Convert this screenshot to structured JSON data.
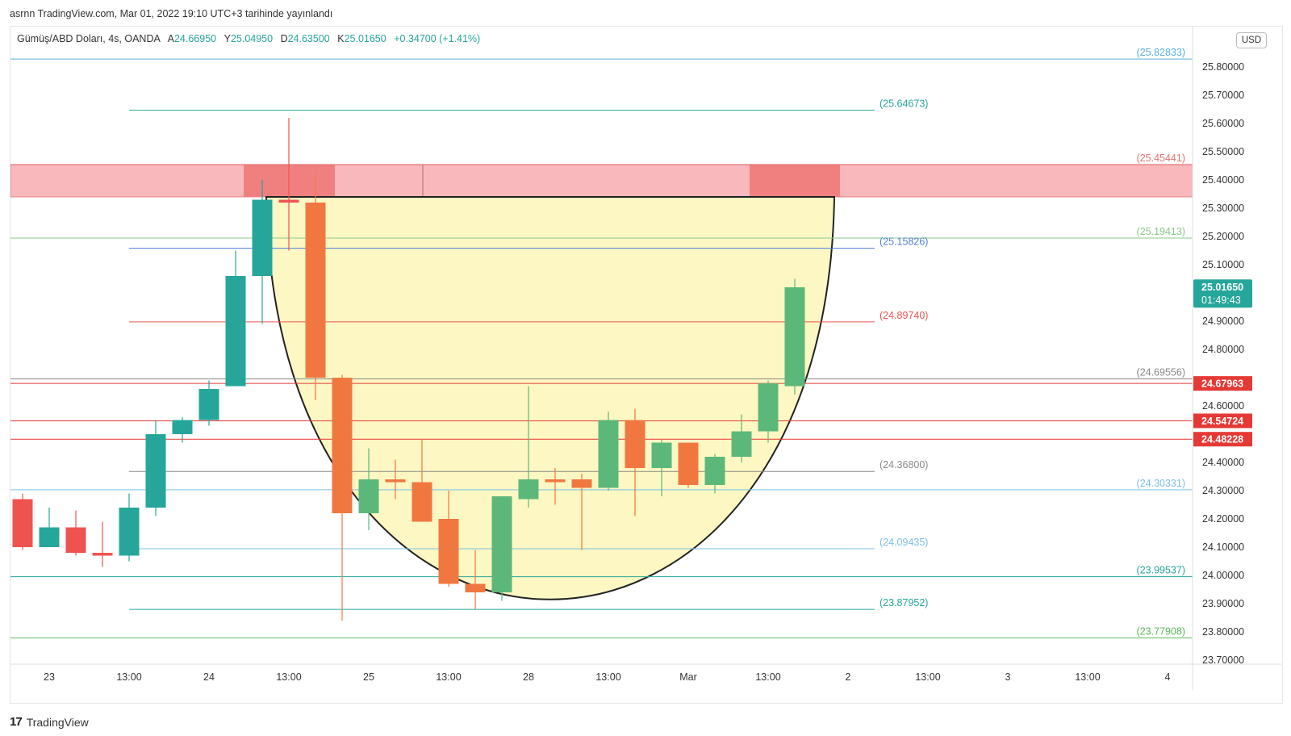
{
  "header": {
    "published": "asrnn TradingView.com, Mar 01, 2022 19:10 UTC+3 tarihinde yayınlandı"
  },
  "legend": {
    "symbol": "Gümüş/ABD Doları, 4s, OANDA",
    "open_label": "A",
    "open": "24.66950",
    "high_label": "Y",
    "high": "25.04950",
    "low_label": "D",
    "low": "24.63500",
    "close_label": "K",
    "close": "25.01650",
    "change": "+0.34700 (+1.41%)"
  },
  "currency": "USD",
  "footer": {
    "brand": "TradingView",
    "logo": "17"
  },
  "colors": {
    "up": "#26a69a",
    "up_light": "#5cb87a",
    "down": "#ef5350",
    "down_orange": "#f07840",
    "zone": "#f8b8bc",
    "zone_dark": "#f08080",
    "cup": "#fdf7c3"
  },
  "chart_data": {
    "type": "candlestick",
    "y_range": [
      23.68,
      25.95
    ],
    "y_ticks": [
      "25.80000",
      "25.70000",
      "25.60000",
      "25.50000",
      "25.40000",
      "25.30000",
      "25.20000",
      "25.10000",
      "24.90000",
      "24.80000",
      "24.60000",
      "24.40000",
      "24.30000",
      "24.20000",
      "24.10000",
      "24.00000",
      "23.90000",
      "23.80000",
      "23.70000"
    ],
    "x_labels": [
      "23",
      "13:00",
      "24",
      "13:00",
      "25",
      "13:00",
      "28",
      "13:00",
      "Mar",
      "13:00",
      "2",
      "13:00",
      "3",
      "13:00",
      "4"
    ],
    "candles": [
      {
        "o": 24.27,
        "h": 24.29,
        "l": 24.09,
        "c": 24.1,
        "color": "down"
      },
      {
        "o": 24.1,
        "h": 24.24,
        "l": 24.1,
        "c": 24.17,
        "color": "up"
      },
      {
        "o": 24.17,
        "h": 24.23,
        "l": 24.07,
        "c": 24.08,
        "color": "down"
      },
      {
        "o": 24.08,
        "h": 24.19,
        "l": 24.03,
        "c": 24.07,
        "color": "down"
      },
      {
        "o": 24.07,
        "h": 24.29,
        "l": 24.05,
        "c": 24.24,
        "color": "up"
      },
      {
        "o": 24.24,
        "h": 24.55,
        "l": 24.21,
        "c": 24.5,
        "color": "up"
      },
      {
        "o": 24.5,
        "h": 24.56,
        "l": 24.47,
        "c": 24.55,
        "color": "up"
      },
      {
        "o": 24.55,
        "h": 24.69,
        "l": 24.53,
        "c": 24.66,
        "color": "up"
      },
      {
        "o": 24.67,
        "h": 25.15,
        "l": 24.67,
        "c": 25.06,
        "color": "up"
      },
      {
        "o": 25.06,
        "h": 25.4,
        "l": 24.89,
        "c": 25.33,
        "color": "up"
      },
      {
        "o": 25.33,
        "h": 25.62,
        "l": 25.15,
        "c": 25.32,
        "color": "down"
      },
      {
        "o": 25.32,
        "h": 25.42,
        "l": 24.62,
        "c": 24.7,
        "color": "down_orange"
      },
      {
        "o": 24.7,
        "h": 24.71,
        "l": 23.84,
        "c": 24.22,
        "color": "down_orange"
      },
      {
        "o": 24.22,
        "h": 24.45,
        "l": 24.16,
        "c": 24.34,
        "color": "up_light"
      },
      {
        "o": 24.34,
        "h": 24.41,
        "l": 24.27,
        "c": 24.33,
        "color": "down_orange"
      },
      {
        "o": 24.33,
        "h": 24.48,
        "l": 24.19,
        "c": 24.19,
        "color": "down_orange"
      },
      {
        "o": 24.2,
        "h": 24.3,
        "l": 23.96,
        "c": 23.97,
        "color": "down_orange"
      },
      {
        "o": 23.97,
        "h": 24.09,
        "l": 23.88,
        "c": 23.94,
        "color": "down_orange"
      },
      {
        "o": 23.94,
        "h": 24.28,
        "l": 23.91,
        "c": 24.28,
        "color": "up_light"
      },
      {
        "o": 24.27,
        "h": 24.67,
        "l": 24.24,
        "c": 24.34,
        "color": "up_light"
      },
      {
        "o": 24.34,
        "h": 24.38,
        "l": 24.25,
        "c": 24.33,
        "color": "down_orange"
      },
      {
        "o": 24.34,
        "h": 24.36,
        "l": 24.09,
        "c": 24.31,
        "color": "down_orange"
      },
      {
        "o": 24.31,
        "h": 24.58,
        "l": 24.3,
        "c": 24.55,
        "color": "up_light"
      },
      {
        "o": 24.55,
        "h": 24.59,
        "l": 24.21,
        "c": 24.38,
        "color": "down_orange"
      },
      {
        "o": 24.38,
        "h": 24.48,
        "l": 24.28,
        "c": 24.47,
        "color": "up_light"
      },
      {
        "o": 24.47,
        "h": 24.47,
        "l": 24.31,
        "c": 24.32,
        "color": "down_orange"
      },
      {
        "o": 24.32,
        "h": 24.43,
        "l": 24.29,
        "c": 24.42,
        "color": "up_light"
      },
      {
        "o": 24.42,
        "h": 24.57,
        "l": 24.4,
        "c": 24.51,
        "color": "up_light"
      },
      {
        "o": 24.51,
        "h": 24.69,
        "l": 24.47,
        "c": 24.68,
        "color": "up_light"
      },
      {
        "o": 24.67,
        "h": 25.05,
        "l": 24.64,
        "c": 25.02,
        "color": "up_light"
      }
    ],
    "levels": [
      {
        "value": 25.82833,
        "label": "(25.82833)",
        "color": "#5ab0d8",
        "span": "full"
      },
      {
        "value": 25.64673,
        "label": "(25.64673)",
        "color": "#26a69a",
        "span": "mid"
      },
      {
        "value": 25.45441,
        "label": "(25.45441)",
        "color": "#e57373",
        "span": "full"
      },
      {
        "value": 25.19413,
        "label": "(25.19413)",
        "color": "#8bc88b",
        "span": "full"
      },
      {
        "value": 25.15826,
        "label": "(25.15826)",
        "color": "#4f7fdc",
        "span": "mid"
      },
      {
        "value": 24.8974,
        "label": "(24.89740)",
        "color": "#ef5350",
        "span": "mid"
      },
      {
        "value": 24.69556,
        "label": "(24.69556)",
        "color": "#888888",
        "span": "full"
      },
      {
        "value": 24.368,
        "label": "(24.36800)",
        "color": "#888888",
        "span": "mid"
      },
      {
        "value": 24.30331,
        "label": "(24.30331)",
        "color": "#7cc0e8",
        "span": "full"
      },
      {
        "value": 24.09435,
        "label": "(24.09435)",
        "color": "#7cc0e8",
        "span": "mid"
      },
      {
        "value": 23.99537,
        "label": "(23.99537)",
        "color": "#26a69a",
        "span": "full"
      },
      {
        "value": 23.87952,
        "label": "(23.87952)",
        "color": "#26a69a",
        "span": "mid"
      },
      {
        "value": 23.77908,
        "label": "(23.77908)",
        "color": "#5cb85c",
        "span": "full"
      }
    ],
    "hlines": [
      {
        "value": 24.67963,
        "label": "24.67963",
        "color": "#e53935"
      },
      {
        "value": 24.54724,
        "label": "24.54724",
        "color": "#e53935"
      },
      {
        "value": 24.48228,
        "label": "24.48228",
        "color": "#e53935"
      }
    ],
    "resistance_zone": [
      25.34,
      25.455
    ],
    "price_badge": {
      "value": 25.0165,
      "price": "25.01650",
      "countdown": "01:49:43"
    },
    "pattern": "cup"
  }
}
